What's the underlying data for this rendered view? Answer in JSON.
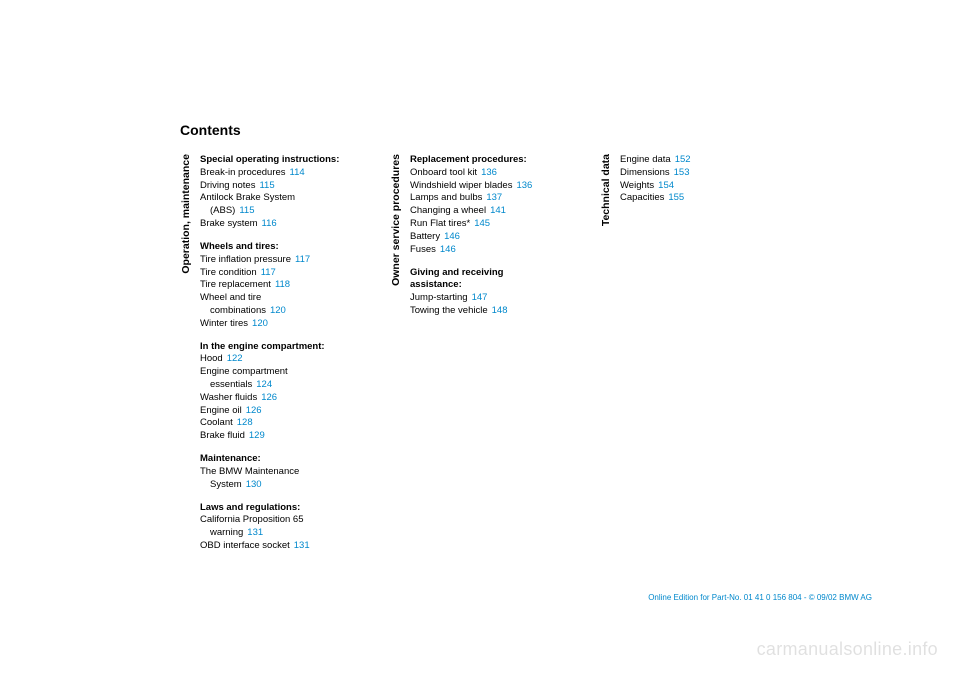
{
  "title": "Contents",
  "colors": {
    "text": "#000000",
    "link": "#0088cc",
    "footer": "#0088cc",
    "watermark": "rgba(0,0,0,0.12)",
    "background": "#ffffff"
  },
  "columns": [
    {
      "label": "Operation, maintenance",
      "sections": [
        {
          "head": "Special operating instructions:",
          "items": [
            {
              "text": "Break-in procedures",
              "page": "114"
            },
            {
              "text": "Driving notes",
              "page": "115"
            },
            {
              "text": "Antilock Brake System",
              "cont": "(ABS)",
              "page": "115"
            },
            {
              "text": "Brake system",
              "page": "116"
            }
          ]
        },
        {
          "head": "Wheels and tires:",
          "items": [
            {
              "text": "Tire inflation pressure",
              "page": "117"
            },
            {
              "text": "Tire condition",
              "page": "117"
            },
            {
              "text": "Tire replacement",
              "page": "118"
            },
            {
              "text": "Wheel and tire",
              "cont": "combinations",
              "page": "120"
            },
            {
              "text": "Winter tires",
              "page": "120"
            }
          ]
        },
        {
          "head": "In the engine compartment:",
          "items": [
            {
              "text": "Hood",
              "page": "122"
            },
            {
              "text": "Engine compartment",
              "cont": "essentials",
              "page": "124"
            },
            {
              "text": "Washer fluids",
              "page": "126"
            },
            {
              "text": "Engine oil",
              "page": "126"
            },
            {
              "text": "Coolant",
              "page": "128"
            },
            {
              "text": "Brake fluid",
              "page": "129"
            }
          ]
        },
        {
          "head": "Maintenance:",
          "items": [
            {
              "text": "The BMW Maintenance",
              "cont": "System",
              "page": "130"
            }
          ]
        },
        {
          "head": "Laws and regulations:",
          "items": [
            {
              "text": "California Proposition 65",
              "cont": "warning",
              "page": "131"
            },
            {
              "text": "OBD interface socket",
              "page": "131"
            }
          ]
        }
      ]
    },
    {
      "label": "Owner service procedures",
      "sections": [
        {
          "head": "Replacement procedures:",
          "items": [
            {
              "text": "Onboard tool kit",
              "page": "136"
            },
            {
              "text": "Windshield wiper blades",
              "page": "136"
            },
            {
              "text": "Lamps and bulbs",
              "page": "137"
            },
            {
              "text": "Changing a wheel",
              "page": "141"
            },
            {
              "text": "Run Flat tires*",
              "page": "145"
            },
            {
              "text": "Battery",
              "page": "146"
            },
            {
              "text": "Fuses",
              "page": "146"
            }
          ]
        },
        {
          "head": "Giving and receiving assistance:",
          "splitHead": [
            "Giving and receiving",
            "assistance:"
          ],
          "items": [
            {
              "text": "Jump-starting",
              "page": "147"
            },
            {
              "text": "Towing the vehicle",
              "page": "148"
            }
          ]
        }
      ]
    },
    {
      "label": "Technical data",
      "sections": [
        {
          "head": "",
          "items": [
            {
              "text": "Engine data",
              "page": "152"
            },
            {
              "text": "Dimensions",
              "page": "153"
            },
            {
              "text": "Weights",
              "page": "154"
            },
            {
              "text": "Capacities",
              "page": "155"
            }
          ]
        }
      ]
    }
  ],
  "footer": "Online Edition for Part-No. 01 41 0 156 804 - © 09/02 BMW AG",
  "watermark": "carmanualsonline.info"
}
